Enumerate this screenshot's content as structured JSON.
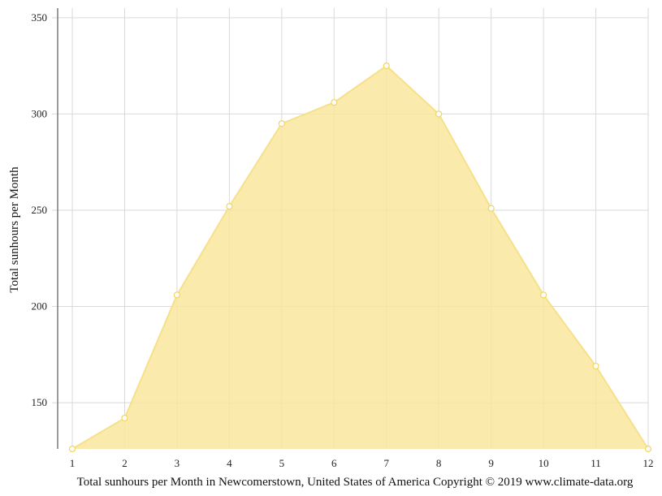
{
  "colors": {
    "area_fill": "#f9e79a",
    "line": "#f6e08a",
    "point_fill": "#ffffff",
    "point_stroke": "#f2d560",
    "grid": "#d9d9d9",
    "axis": "#7a7a7a"
  },
  "chart_data": {
    "type": "area",
    "x": [
      1,
      2,
      3,
      4,
      5,
      6,
      7,
      8,
      9,
      10,
      11,
      12
    ],
    "series": [
      {
        "values": [
          126,
          142,
          206,
          252,
          295,
          306,
          325,
          300,
          251,
          206,
          169,
          126
        ]
      }
    ],
    "xticks": [
      "1",
      "2",
      "3",
      "4",
      "5",
      "6",
      "7",
      "8",
      "9",
      "10",
      "11",
      "12"
    ],
    "yticks": [
      "150",
      "200",
      "250",
      "300",
      "350"
    ],
    "ylabel": "Total sunhours per Month",
    "xlabel": "Total sunhours per Month in Newcomerstown, United States of America Copyright © 2019 www.climate-data.org",
    "xlim": [
      1,
      12
    ],
    "ylim": [
      126,
      355
    ],
    "grid": true,
    "legend": "none"
  }
}
